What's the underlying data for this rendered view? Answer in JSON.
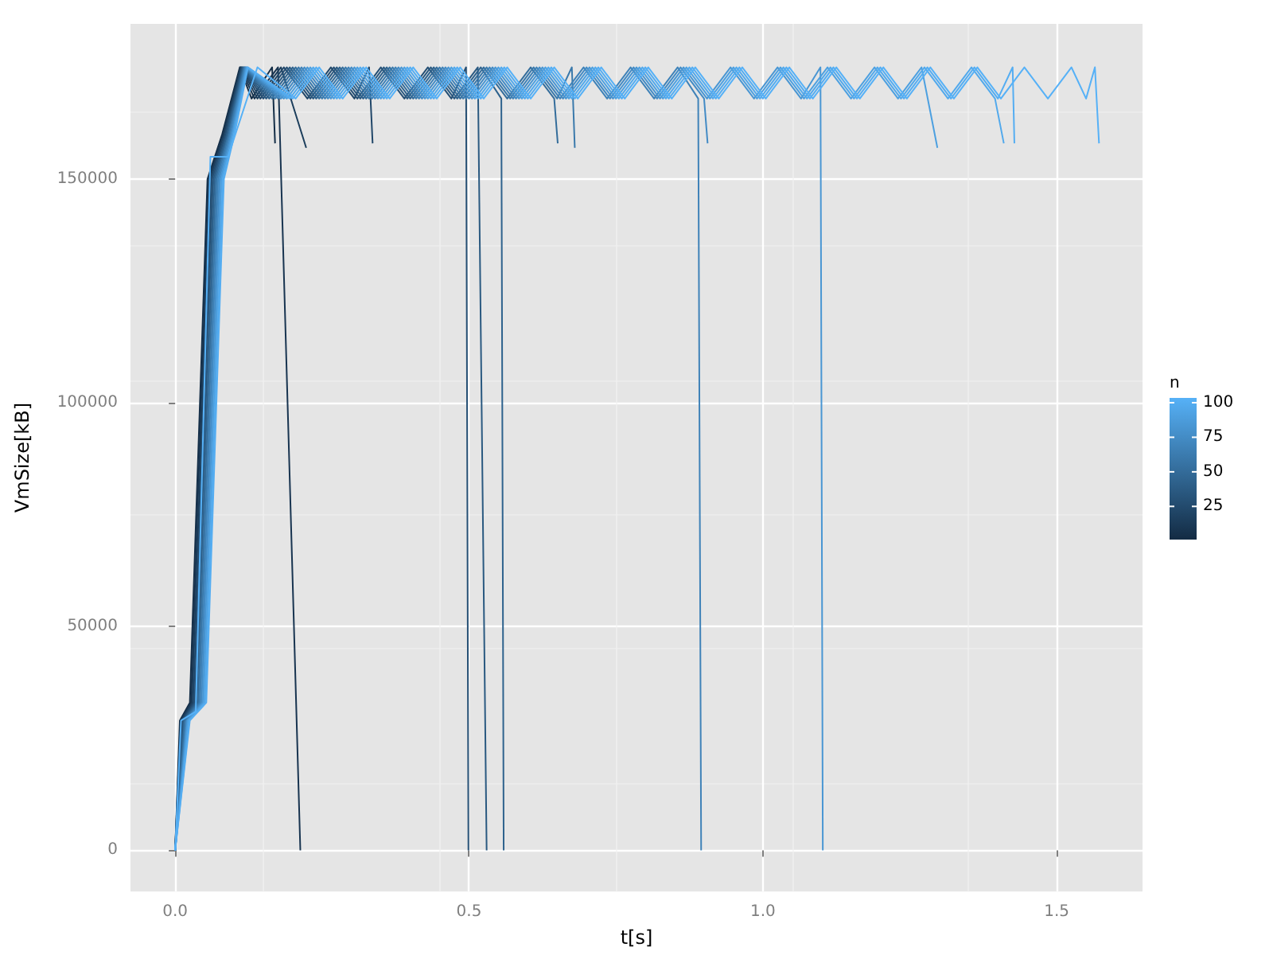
{
  "chart_data": {
    "type": "line",
    "xlabel": "t[s]",
    "ylabel": "VmSize[kB]",
    "clabel": "n",
    "clim": [
      1,
      100
    ],
    "cticks": [
      25,
      50,
      75,
      100
    ],
    "xlim": [
      -0.076,
      1.646
    ],
    "ylim": [
      -9200,
      184700
    ],
    "xticks": [
      {
        "value": 0,
        "label": "0.0"
      },
      {
        "value": 0.5,
        "label": "0.5"
      },
      {
        "value": 1,
        "label": "1.0"
      },
      {
        "value": 1.5,
        "label": "1.5"
      }
    ],
    "yticks": [
      0,
      50000,
      100000,
      150000
    ],
    "grid": true,
    "marker": "none",
    "line_style": "solid",
    "series": [
      {
        "color": "#142e47",
        "x": [
          0,
          0.008,
          0.025,
          0.055,
          0.08,
          0.11,
          0.13,
          0.165,
          0.17
        ],
        "values": [
          0,
          29000,
          33000,
          150000,
          160000,
          175000,
          168000,
          175000,
          158000
        ]
      },
      {
        "color": "#183450",
        "x": [
          0,
          0.009,
          0.027,
          0.057,
          0.082,
          0.111,
          0.135,
          0.175,
          0.213
        ],
        "values": [
          0,
          29000,
          33000,
          150000,
          160000,
          175000,
          168000,
          175000,
          0
        ]
      },
      {
        "color": "#1c3e5c",
        "x": [
          0,
          0.01,
          0.029,
          0.059,
          0.083,
          0.112,
          0.14,
          0.18,
          0.223
        ],
        "values": [
          0,
          29000,
          33000,
          150000,
          160000,
          175000,
          168000,
          175000,
          157000
        ]
      },
      {
        "color": "#214769",
        "x": [
          0,
          0.012,
          0.031,
          0.061,
          0.085,
          0.113,
          0.145,
          0.185,
          0.225,
          0.265,
          0.305,
          0.33,
          0.336
        ],
        "values": [
          0,
          29000,
          33000,
          150000,
          160000,
          175000,
          168000,
          175000,
          168000,
          175000,
          168000,
          175000,
          158000
        ]
      },
      {
        "color": "#254f74",
        "x": [
          0,
          0.013,
          0.033,
          0.063,
          0.086,
          0.114,
          0.15,
          0.19,
          0.23,
          0.27,
          0.31,
          0.35,
          0.39,
          0.43,
          0.47,
          0.495,
          0.499
        ],
        "values": [
          0,
          29000,
          33000,
          150000,
          160000,
          175000,
          168000,
          175000,
          168000,
          175000,
          168000,
          175000,
          168000,
          175000,
          168000,
          175000,
          0
        ]
      },
      {
        "color": "#2a5980",
        "x": [
          0,
          0.014,
          0.035,
          0.065,
          0.088,
          0.115,
          0.155,
          0.195,
          0.235,
          0.275,
          0.315,
          0.355,
          0.395,
          0.435,
          0.475,
          0.515,
          0.53
        ],
        "values": [
          0,
          29000,
          33000,
          150000,
          160000,
          175000,
          168000,
          175000,
          168000,
          175000,
          168000,
          175000,
          168000,
          175000,
          168000,
          175000,
          0
        ]
      },
      {
        "color": "#2e628d",
        "x": [
          0,
          0.015,
          0.037,
          0.067,
          0.089,
          0.116,
          0.16,
          0.2,
          0.24,
          0.28,
          0.32,
          0.36,
          0.4,
          0.44,
          0.48,
          0.52,
          0.555,
          0.559
        ],
        "values": [
          0,
          29000,
          33000,
          150000,
          160000,
          175000,
          168000,
          175000,
          168000,
          175000,
          168000,
          175000,
          168000,
          175000,
          168000,
          175000,
          168000,
          0
        ]
      },
      {
        "color": "#346d9b",
        "x": [
          0,
          0.016,
          0.039,
          0.069,
          0.091,
          0.117,
          0.165,
          0.205,
          0.245,
          0.285,
          0.325,
          0.365,
          0.405,
          0.445,
          0.485,
          0.525,
          0.565,
          0.605,
          0.645,
          0.651
        ],
        "values": [
          0,
          29000,
          33000,
          150000,
          160000,
          175000,
          168000,
          175000,
          168000,
          175000,
          168000,
          175000,
          168000,
          175000,
          168000,
          175000,
          168000,
          175000,
          168000,
          158000
        ]
      },
      {
        "color": "#3a79ab",
        "x": [
          0,
          0.018,
          0.041,
          0.071,
          0.092,
          0.118,
          0.17,
          0.21,
          0.25,
          0.29,
          0.33,
          0.37,
          0.41,
          0.45,
          0.49,
          0.53,
          0.57,
          0.61,
          0.65,
          0.675,
          0.68
        ],
        "values": [
          0,
          29000,
          33000,
          150000,
          160000,
          175000,
          168000,
          175000,
          168000,
          175000,
          168000,
          175000,
          168000,
          175000,
          168000,
          175000,
          168000,
          175000,
          168000,
          175000,
          157000
        ]
      },
      {
        "color": "#3f82b8",
        "x": [
          0,
          0.019,
          0.043,
          0.073,
          0.094,
          0.119,
          0.175,
          0.215,
          0.255,
          0.295,
          0.335,
          0.375,
          0.415,
          0.455,
          0.495,
          0.535,
          0.575,
          0.615,
          0.655,
          0.695,
          0.735,
          0.775,
          0.815,
          0.855,
          0.89,
          0.895
        ],
        "values": [
          0,
          29000,
          33000,
          150000,
          160000,
          175000,
          168000,
          175000,
          168000,
          175000,
          168000,
          175000,
          168000,
          175000,
          168000,
          175000,
          168000,
          175000,
          168000,
          175000,
          168000,
          175000,
          168000,
          175000,
          168000,
          0
        ]
      },
      {
        "color": "#438bc5",
        "x": [
          0,
          0.02,
          0.045,
          0.075,
          0.095,
          0.12,
          0.18,
          0.22,
          0.26,
          0.3,
          0.34,
          0.38,
          0.42,
          0.46,
          0.5,
          0.54,
          0.58,
          0.62,
          0.66,
          0.7,
          0.74,
          0.78,
          0.82,
          0.86,
          0.9,
          0.906
        ],
        "values": [
          0,
          29000,
          33000,
          150000,
          160000,
          175000,
          168000,
          175000,
          168000,
          175000,
          168000,
          175000,
          168000,
          175000,
          168000,
          175000,
          168000,
          175000,
          168000,
          175000,
          168000,
          175000,
          168000,
          175000,
          168000,
          158000
        ]
      },
      {
        "color": "#4996d3",
        "x": [
          0,
          0.021,
          0.047,
          0.077,
          0.097,
          0.121,
          0.185,
          0.225,
          0.265,
          0.305,
          0.345,
          0.385,
          0.425,
          0.465,
          0.505,
          0.545,
          0.585,
          0.625,
          0.665,
          0.705,
          0.745,
          0.785,
          0.825,
          0.865,
          0.905,
          0.945,
          0.985,
          1.025,
          1.065,
          1.098,
          1.102
        ],
        "values": [
          0,
          29000,
          33000,
          150000,
          160000,
          175000,
          168000,
          175000,
          168000,
          175000,
          168000,
          175000,
          168000,
          175000,
          168000,
          175000,
          168000,
          175000,
          168000,
          175000,
          168000,
          175000,
          168000,
          175000,
          168000,
          175000,
          168000,
          175000,
          168000,
          175000,
          0
        ]
      },
      {
        "color": "#4da0e0",
        "x": [
          0,
          0.022,
          0.049,
          0.079,
          0.098,
          0.122,
          0.19,
          0.23,
          0.27,
          0.31,
          0.35,
          0.39,
          0.43,
          0.47,
          0.51,
          0.55,
          0.59,
          0.63,
          0.67,
          0.71,
          0.75,
          0.79,
          0.83,
          0.87,
          0.91,
          0.95,
          0.99,
          1.03,
          1.07,
          1.11,
          1.15,
          1.19,
          1.23,
          1.27,
          1.297
        ],
        "values": [
          0,
          29000,
          33000,
          150000,
          160000,
          175000,
          168000,
          175000,
          168000,
          175000,
          168000,
          175000,
          168000,
          175000,
          168000,
          175000,
          168000,
          175000,
          168000,
          175000,
          168000,
          175000,
          168000,
          175000,
          168000,
          175000,
          168000,
          175000,
          168000,
          175000,
          168000,
          175000,
          168000,
          175000,
          157000
        ]
      },
      {
        "color": "#52a9ec",
        "x": [
          0,
          0.024,
          0.051,
          0.081,
          0.1,
          0.123,
          0.195,
          0.235,
          0.275,
          0.315,
          0.355,
          0.395,
          0.435,
          0.475,
          0.515,
          0.555,
          0.595,
          0.635,
          0.675,
          0.715,
          0.755,
          0.795,
          0.835,
          0.875,
          0.915,
          0.955,
          0.995,
          1.035,
          1.075,
          1.115,
          1.155,
          1.195,
          1.235,
          1.275,
          1.315,
          1.355,
          1.395,
          1.41
        ],
        "values": [
          0,
          29000,
          33000,
          150000,
          160000,
          175000,
          168000,
          175000,
          168000,
          175000,
          168000,
          175000,
          168000,
          175000,
          168000,
          175000,
          168000,
          175000,
          168000,
          175000,
          168000,
          175000,
          168000,
          175000,
          168000,
          175000,
          168000,
          175000,
          168000,
          175000,
          168000,
          175000,
          168000,
          175000,
          168000,
          175000,
          168000,
          158000
        ]
      },
      {
        "color": "#54adf2",
        "x": [
          0,
          0.025,
          0.053,
          0.083,
          0.101,
          0.124,
          0.2,
          0.24,
          0.28,
          0.32,
          0.36,
          0.4,
          0.44,
          0.48,
          0.52,
          0.56,
          0.6,
          0.64,
          0.68,
          0.72,
          0.76,
          0.8,
          0.84,
          0.88,
          0.92,
          0.96,
          1,
          1.04,
          1.08,
          1.12,
          1.16,
          1.2,
          1.24,
          1.28,
          1.32,
          1.36,
          1.4,
          1.425,
          1.428
        ],
        "values": [
          0,
          29000,
          33000,
          150000,
          160000,
          175000,
          168000,
          175000,
          168000,
          175000,
          168000,
          175000,
          168000,
          175000,
          168000,
          175000,
          168000,
          175000,
          168000,
          175000,
          168000,
          175000,
          168000,
          175000,
          168000,
          175000,
          168000,
          175000,
          168000,
          175000,
          168000,
          175000,
          168000,
          175000,
          168000,
          175000,
          168000,
          175000,
          158000
        ]
      },
      {
        "color": "#56b1f7",
        "x": [
          0,
          0.01,
          0.035,
          0.06,
          0.09,
          0.14,
          0.205,
          0.245,
          0.285,
          0.325,
          0.365,
          0.405,
          0.445,
          0.485,
          0.525,
          0.565,
          0.605,
          0.645,
          0.685,
          0.725,
          0.765,
          0.805,
          0.845,
          0.885,
          0.925,
          0.965,
          1.005,
          1.045,
          1.085,
          1.125,
          1.165,
          1.205,
          1.245,
          1.285,
          1.325,
          1.365,
          1.405,
          1.445,
          1.485,
          1.525,
          1.55,
          1.565,
          1.572
        ],
        "values": [
          0,
          29000,
          31000,
          155000,
          155000,
          175000,
          168000,
          175000,
          168000,
          175000,
          168000,
          175000,
          168000,
          175000,
          168000,
          175000,
          168000,
          175000,
          168000,
          175000,
          168000,
          175000,
          168000,
          175000,
          168000,
          175000,
          168000,
          175000,
          168000,
          175000,
          168000,
          175000,
          168000,
          175000,
          168000,
          175000,
          168000,
          175000,
          168000,
          175000,
          168000,
          175000,
          158000
        ]
      }
    ]
  }
}
